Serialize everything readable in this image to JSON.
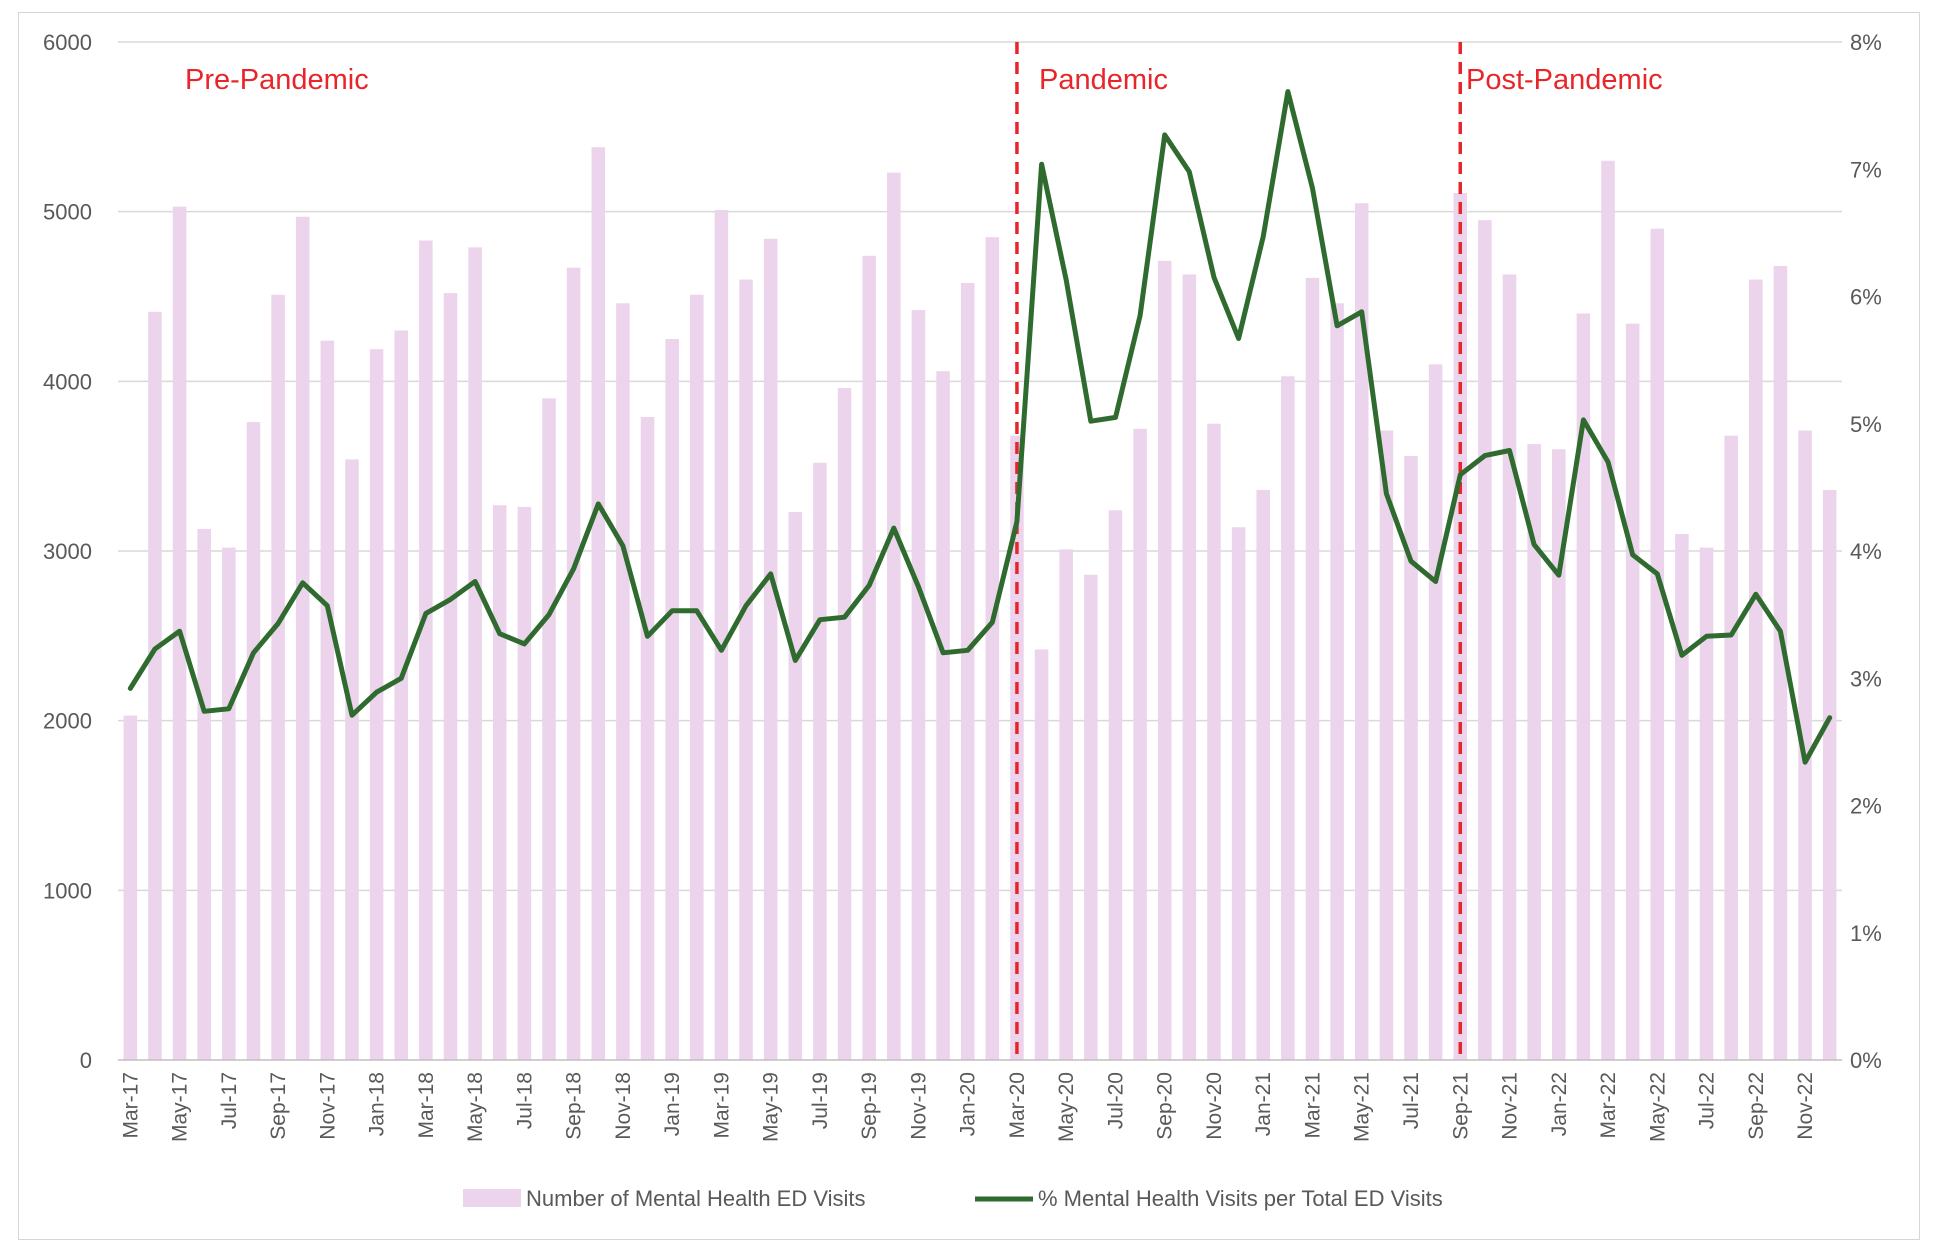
{
  "chart_data": {
    "type": "bar+line",
    "title": "",
    "xlabel": "",
    "ylabel_left": "",
    "ylabel_right": "",
    "ylim_left": [
      0,
      6000
    ],
    "ylim_right": [
      0,
      0.08
    ],
    "yticks_left": [
      "0",
      "1000",
      "2000",
      "3000",
      "4000",
      "5000",
      "6000"
    ],
    "yticks_right": [
      "0%",
      "1%",
      "2%",
      "3%",
      "4%",
      "5%",
      "6%",
      "7%",
      "8%"
    ],
    "grid": "horizontal",
    "legend_position": "bottom",
    "categories": [
      "Mar-17",
      "Apr-17",
      "May-17",
      "Jun-17",
      "Jul-17",
      "Aug-17",
      "Sep-17",
      "Oct-17",
      "Nov-17",
      "Dec-17",
      "Jan-18",
      "Feb-18",
      "Mar-18",
      "Apr-18",
      "May-18",
      "Jun-18",
      "Jul-18",
      "Aug-18",
      "Sep-18",
      "Oct-18",
      "Nov-18",
      "Dec-18",
      "Jan-19",
      "Feb-19",
      "Mar-19",
      "Apr-19",
      "May-19",
      "Jun-19",
      "Jul-19",
      "Aug-19",
      "Sep-19",
      "Oct-19",
      "Nov-19",
      "Dec-19",
      "Jan-20",
      "Feb-20",
      "Mar-20",
      "Apr-20",
      "May-20",
      "Jun-20",
      "Jul-20",
      "Aug-20",
      "Sep-20",
      "Oct-20",
      "Nov-20",
      "Dec-20",
      "Jan-21",
      "Feb-21",
      "Mar-21",
      "Apr-21",
      "May-21",
      "Jun-21",
      "Jul-21",
      "Aug-21",
      "Sep-21",
      "Oct-21",
      "Nov-21",
      "Dec-21",
      "Jan-22",
      "Feb-22",
      "Mar-22",
      "Apr-22",
      "May-22",
      "Jun-22",
      "Jul-22",
      "Aug-22",
      "Sep-22",
      "Oct-22",
      "Nov-22",
      "Dec-22"
    ],
    "x_tick_labels": [
      "Mar-17",
      "May-17",
      "Jul-17",
      "Sep-17",
      "Nov-17",
      "Jan-18",
      "Mar-18",
      "May-18",
      "Jul-18",
      "Sep-18",
      "Nov-18",
      "Jan-19",
      "Mar-19",
      "May-19",
      "Jul-19",
      "Sep-19",
      "Nov-19",
      "Jan-20",
      "Mar-20",
      "May-20",
      "Jul-20",
      "Sep-20",
      "Nov-20",
      "Jan-21",
      "Mar-21",
      "May-21",
      "Jul-21",
      "Sep-21",
      "Nov-21",
      "Jan-22",
      "Mar-22",
      "May-22",
      "Jul-22",
      "Sep-22",
      "Nov-22"
    ],
    "series": [
      {
        "name": "Number of Mental Health ED Visits",
        "kind": "bar",
        "axis": "left",
        "color": "#ecd5ec",
        "values": [
          2030,
          4410,
          5030,
          3130,
          3020,
          3760,
          4510,
          4970,
          4240,
          3540,
          4190,
          4300,
          4830,
          4520,
          4790,
          3270,
          3260,
          3900,
          4670,
          5380,
          4460,
          3790,
          4250,
          4510,
          5010,
          4600,
          4840,
          3230,
          3520,
          3960,
          4740,
          5230,
          4420,
          4060,
          4580,
          4850,
          3680,
          2420,
          3010,
          2860,
          3240,
          3720,
          4710,
          4630,
          3750,
          3140,
          3360,
          4030,
          4610,
          4460,
          5050,
          3710,
          3560,
          4100,
          5110,
          4950,
          4630,
          3630,
          3600,
          4400,
          5300,
          4340,
          4900,
          3100,
          3020,
          3680,
          4600,
          4680,
          3710,
          3360
        ]
      },
      {
        "name": "% Mental Health Visits per Total ED Visits",
        "kind": "line",
        "axis": "right",
        "color": "#2f6b2f",
        "values": [
          0.0292,
          0.0323,
          0.0337,
          0.0274,
          0.0276,
          0.032,
          0.0343,
          0.0375,
          0.0357,
          0.0271,
          0.0289,
          0.03,
          0.0351,
          0.0362,
          0.0376,
          0.0335,
          0.0327,
          0.035,
          0.0386,
          0.0437,
          0.0404,
          0.0333,
          0.0353,
          0.0353,
          0.0322,
          0.0357,
          0.0382,
          0.0314,
          0.0346,
          0.0348,
          0.0373,
          0.0418,
          0.0372,
          0.032,
          0.0322,
          0.0344,
          0.0423,
          0.0704,
          0.0613,
          0.0502,
          0.0505,
          0.0585,
          0.0727,
          0.0698,
          0.0615,
          0.0567,
          0.0647,
          0.0761,
          0.0685,
          0.0577,
          0.0588,
          0.0445,
          0.0392,
          0.0376,
          0.046,
          0.0475,
          0.0479,
          0.0405,
          0.0381,
          0.0503,
          0.047,
          0.0397,
          0.0382,
          0.0318,
          0.0333,
          0.0334,
          0.0366,
          0.0337,
          0.0234,
          0.0269
        ]
      }
    ],
    "annotations": [
      {
        "text": "Pre-Pandemic",
        "color": "#e8262a"
      },
      {
        "text": "Pandemic",
        "color": "#e8262a"
      },
      {
        "text": "Post-Pandemic",
        "color": "#e8262a"
      }
    ],
    "dividers": [
      "Mar-20",
      "Sep-21"
    ],
    "divider_color": "#e8262a"
  }
}
